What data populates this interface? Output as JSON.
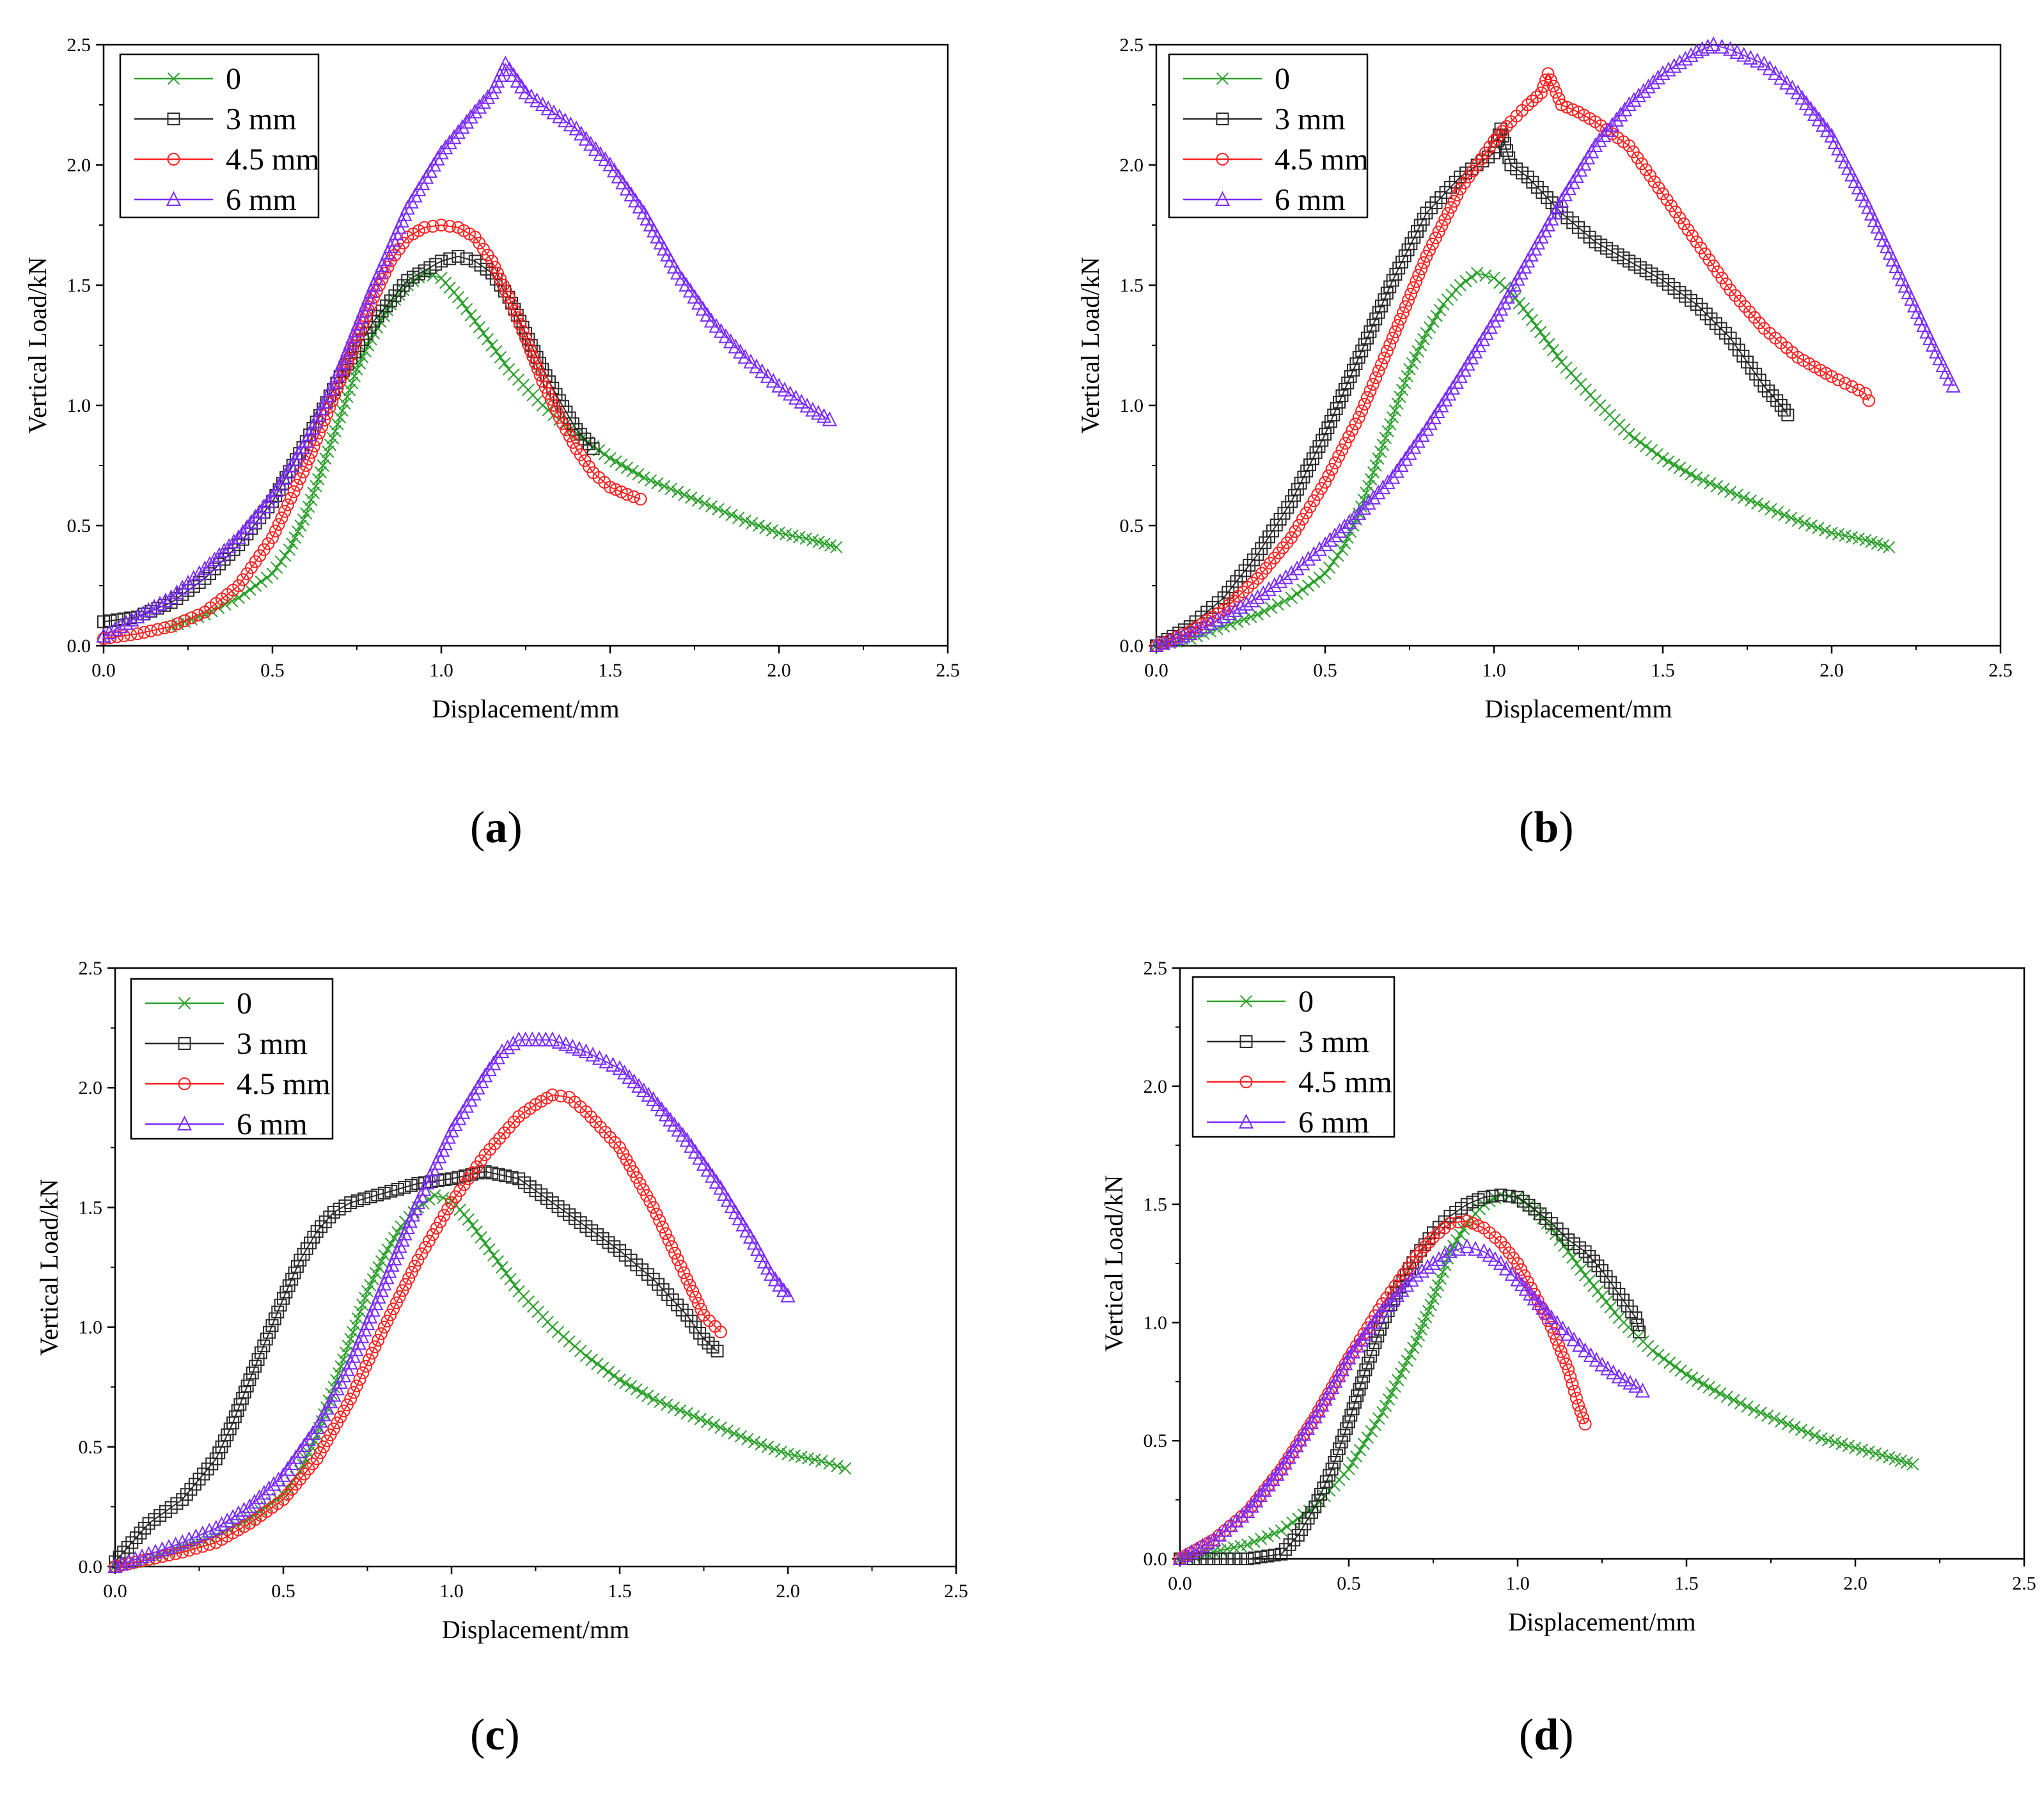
{
  "figure": {
    "series_colors": {
      "0": "#2ca02c",
      "3 mm": "#2a2a2a",
      "4.5 mm": "#ff2020",
      "6 mm": "#7b2cff"
    }
  },
  "chart_data": [
    {
      "id": "a",
      "type": "line",
      "caption_letter": "a",
      "caption_open": "(",
      "caption_close": ")",
      "xlabel": "Displacement/mm",
      "ylabel": "Vertical Load/kN",
      "xlim": [
        0,
        2.5
      ],
      "ylim": [
        0,
        2.5
      ],
      "xticks": [
        "0.0",
        "0.5",
        "1.0",
        "1.5",
        "2.0",
        "2.5"
      ],
      "yticks": [
        "0.0",
        "0.5",
        "1.0",
        "1.5",
        "2.0",
        "2.5"
      ],
      "legend_position": "top-left",
      "series": [
        {
          "name": "0",
          "marker": "x",
          "color": "#2ca02c",
          "x": [
            0.2,
            0.3,
            0.4,
            0.5,
            0.55,
            0.6,
            0.65,
            0.7,
            0.75,
            0.8,
            0.85,
            0.9,
            0.95,
            1.0,
            1.05,
            1.1,
            1.15,
            1.2,
            1.3,
            1.4,
            1.5,
            1.6,
            1.7,
            1.8,
            1.9,
            2.0,
            2.1,
            2.17
          ],
          "y": [
            0.08,
            0.13,
            0.2,
            0.3,
            0.4,
            0.55,
            0.75,
            0.95,
            1.15,
            1.3,
            1.42,
            1.5,
            1.55,
            1.53,
            1.45,
            1.35,
            1.25,
            1.15,
            1.0,
            0.88,
            0.78,
            0.7,
            0.64,
            0.58,
            0.52,
            0.47,
            0.44,
            0.41
          ]
        },
        {
          "name": "3 mm",
          "marker": "square",
          "color": "#2a2a2a",
          "x": [
            0.0,
            0.1,
            0.2,
            0.3,
            0.4,
            0.5,
            0.6,
            0.7,
            0.8,
            0.9,
            1.0,
            1.05,
            1.1,
            1.15,
            1.2,
            1.25,
            1.3,
            1.35,
            1.4,
            1.45
          ],
          "y": [
            0.1,
            0.12,
            0.18,
            0.28,
            0.42,
            0.6,
            0.85,
            1.12,
            1.35,
            1.52,
            1.6,
            1.62,
            1.6,
            1.55,
            1.45,
            1.3,
            1.15,
            1.02,
            0.9,
            0.82
          ]
        },
        {
          "name": "4.5 mm",
          "marker": "circle",
          "color": "#ff2020",
          "x": [
            0.0,
            0.1,
            0.2,
            0.3,
            0.4,
            0.5,
            0.6,
            0.7,
            0.8,
            0.85,
            0.9,
            0.95,
            1.0,
            1.05,
            1.1,
            1.15,
            1.2,
            1.25,
            1.3,
            1.35,
            1.4,
            1.45,
            1.5,
            1.55,
            1.59
          ],
          "y": [
            0.03,
            0.05,
            0.08,
            0.14,
            0.25,
            0.45,
            0.75,
            1.1,
            1.45,
            1.6,
            1.7,
            1.74,
            1.75,
            1.74,
            1.7,
            1.6,
            1.45,
            1.28,
            1.1,
            0.95,
            0.82,
            0.72,
            0.66,
            0.63,
            0.61
          ]
        },
        {
          "name": "6 mm",
          "marker": "triangle",
          "color": "#7b2cff",
          "x": [
            0.0,
            0.1,
            0.2,
            0.3,
            0.4,
            0.5,
            0.6,
            0.7,
            0.8,
            0.9,
            1.0,
            1.1,
            1.15,
            1.19,
            1.25,
            1.3,
            1.4,
            1.5,
            1.6,
            1.7,
            1.8,
            1.9,
            2.0,
            2.1,
            2.15
          ],
          "y": [
            0.04,
            0.12,
            0.2,
            0.32,
            0.45,
            0.62,
            0.85,
            1.15,
            1.5,
            1.82,
            2.05,
            2.22,
            2.3,
            2.42,
            2.3,
            2.25,
            2.15,
            2.0,
            1.8,
            1.55,
            1.35,
            1.2,
            1.08,
            0.98,
            0.94
          ]
        }
      ]
    },
    {
      "id": "b",
      "type": "line",
      "caption_letter": "b",
      "caption_open": "(",
      "caption_close": ")",
      "xlabel": "Displacement/mm",
      "ylabel": "Vertical Load/kN",
      "xlim": [
        0,
        2.5
      ],
      "ylim": [
        0,
        2.5
      ],
      "xticks": [
        "0.0",
        "0.5",
        "1.0",
        "1.5",
        "2.0",
        "2.5"
      ],
      "yticks": [
        "0.0",
        "0.5",
        "1.0",
        "1.5",
        "2.0",
        "2.5"
      ],
      "legend_position": "top-left",
      "series": [
        {
          "name": "0",
          "marker": "x",
          "color": "#2ca02c",
          "x": [
            0.0,
            0.1,
            0.2,
            0.3,
            0.4,
            0.5,
            0.55,
            0.6,
            0.65,
            0.7,
            0.75,
            0.8,
            0.85,
            0.9,
            0.95,
            1.0,
            1.05,
            1.1,
            1.15,
            1.2,
            1.3,
            1.4,
            1.5,
            1.6,
            1.7,
            1.8,
            1.9,
            2.0,
            2.1,
            2.17
          ],
          "y": [
            0.0,
            0.03,
            0.08,
            0.13,
            0.2,
            0.3,
            0.4,
            0.55,
            0.75,
            0.95,
            1.15,
            1.3,
            1.42,
            1.5,
            1.55,
            1.53,
            1.47,
            1.38,
            1.28,
            1.18,
            1.02,
            0.88,
            0.78,
            0.7,
            0.64,
            0.58,
            0.52,
            0.47,
            0.44,
            0.41
          ]
        },
        {
          "name": "3 mm",
          "marker": "square",
          "color": "#2a2a2a",
          "x": [
            0.0,
            0.1,
            0.2,
            0.3,
            0.4,
            0.5,
            0.6,
            0.7,
            0.8,
            0.9,
            0.95,
            1.0,
            1.02,
            1.05,
            1.1,
            1.2,
            1.3,
            1.4,
            1.5,
            1.6,
            1.7,
            1.75,
            1.8,
            1.85,
            1.87
          ],
          "y": [
            0.0,
            0.08,
            0.2,
            0.38,
            0.6,
            0.88,
            1.2,
            1.52,
            1.8,
            1.95,
            2.0,
            2.05,
            2.15,
            2.0,
            1.95,
            1.8,
            1.68,
            1.6,
            1.52,
            1.42,
            1.28,
            1.18,
            1.08,
            1.0,
            0.96
          ]
        },
        {
          "name": "4.5 mm",
          "marker": "circle",
          "color": "#ff2020",
          "x": [
            0.0,
            0.1,
            0.2,
            0.3,
            0.4,
            0.5,
            0.6,
            0.7,
            0.8,
            0.9,
            1.0,
            1.05,
            1.1,
            1.14,
            1.16,
            1.2,
            1.25,
            1.3,
            1.4,
            1.5,
            1.6,
            1.7,
            1.8,
            1.9,
            2.0,
            2.1,
            2.11
          ],
          "y": [
            0.0,
            0.06,
            0.15,
            0.28,
            0.45,
            0.68,
            0.95,
            1.28,
            1.62,
            1.9,
            2.1,
            2.18,
            2.25,
            2.3,
            2.38,
            2.25,
            2.22,
            2.18,
            2.08,
            1.88,
            1.68,
            1.48,
            1.32,
            1.2,
            1.12,
            1.05,
            1.02
          ]
        },
        {
          "name": "6 mm",
          "marker": "triangle",
          "color": "#7b2cff",
          "x": [
            0.0,
            0.1,
            0.2,
            0.3,
            0.4,
            0.5,
            0.6,
            0.7,
            0.8,
            0.9,
            1.0,
            1.1,
            1.2,
            1.3,
            1.4,
            1.5,
            1.6,
            1.65,
            1.7,
            1.8,
            1.9,
            2.0,
            2.1,
            2.2,
            2.3,
            2.36
          ],
          "y": [
            0.0,
            0.05,
            0.12,
            0.2,
            0.3,
            0.42,
            0.55,
            0.7,
            0.9,
            1.12,
            1.35,
            1.6,
            1.85,
            2.08,
            2.25,
            2.38,
            2.47,
            2.5,
            2.48,
            2.42,
            2.3,
            2.12,
            1.85,
            1.55,
            1.25,
            1.08
          ]
        }
      ]
    },
    {
      "id": "c",
      "type": "line",
      "caption_letter": "c",
      "caption_open": "(",
      "caption_close": ")",
      "xlabel": "Displacement/mm",
      "ylabel": "Vertical Load/kN",
      "xlim": [
        0,
        2.5
      ],
      "ylim": [
        0,
        2.5
      ],
      "xticks": [
        "0.0",
        "0.5",
        "1.0",
        "1.5",
        "2.0",
        "2.5"
      ],
      "yticks": [
        "0.0",
        "0.5",
        "1.0",
        "1.5",
        "2.0",
        "2.5"
      ],
      "legend_position": "top-left",
      "series": [
        {
          "name": "0",
          "marker": "x",
          "color": "#2ca02c",
          "x": [
            0.0,
            0.1,
            0.2,
            0.3,
            0.4,
            0.5,
            0.55,
            0.6,
            0.65,
            0.7,
            0.75,
            0.8,
            0.85,
            0.9,
            0.95,
            1.0,
            1.05,
            1.1,
            1.15,
            1.2,
            1.3,
            1.4,
            1.5,
            1.6,
            1.7,
            1.8,
            1.9,
            2.0,
            2.1,
            2.17
          ],
          "y": [
            0.0,
            0.03,
            0.08,
            0.13,
            0.2,
            0.3,
            0.4,
            0.55,
            0.75,
            0.95,
            1.15,
            1.3,
            1.42,
            1.5,
            1.55,
            1.53,
            1.45,
            1.35,
            1.25,
            1.15,
            1.0,
            0.88,
            0.78,
            0.7,
            0.64,
            0.58,
            0.52,
            0.47,
            0.44,
            0.41
          ]
        },
        {
          "name": "3 mm",
          "marker": "square",
          "color": "#2a2a2a",
          "x": [
            0.0,
            0.05,
            0.1,
            0.2,
            0.3,
            0.35,
            0.4,
            0.45,
            0.5,
            0.55,
            0.6,
            0.65,
            0.7,
            0.8,
            0.9,
            1.0,
            1.1,
            1.2,
            1.3,
            1.4,
            1.5,
            1.6,
            1.7,
            1.75,
            1.79
          ],
          "y": [
            0.02,
            0.1,
            0.18,
            0.28,
            0.45,
            0.6,
            0.78,
            0.95,
            1.12,
            1.28,
            1.4,
            1.48,
            1.52,
            1.56,
            1.6,
            1.62,
            1.65,
            1.62,
            1.52,
            1.42,
            1.32,
            1.2,
            1.05,
            0.95,
            0.9
          ]
        },
        {
          "name": "4.5 mm",
          "marker": "circle",
          "color": "#ff2020",
          "x": [
            0.0,
            0.1,
            0.2,
            0.3,
            0.4,
            0.5,
            0.6,
            0.7,
            0.8,
            0.9,
            1.0,
            1.1,
            1.2,
            1.25,
            1.3,
            1.35,
            1.4,
            1.5,
            1.6,
            1.7,
            1.75,
            1.8
          ],
          "y": [
            0.0,
            0.03,
            0.06,
            0.1,
            0.18,
            0.28,
            0.45,
            0.7,
            1.0,
            1.28,
            1.52,
            1.72,
            1.88,
            1.93,
            1.97,
            1.96,
            1.9,
            1.75,
            1.5,
            1.2,
            1.05,
            0.98
          ]
        },
        {
          "name": "6 mm",
          "marker": "triangle",
          "color": "#7b2cff",
          "x": [
            0.0,
            0.1,
            0.2,
            0.3,
            0.4,
            0.5,
            0.6,
            0.7,
            0.8,
            0.9,
            1.0,
            1.1,
            1.15,
            1.2,
            1.3,
            1.4,
            1.5,
            1.6,
            1.7,
            1.8,
            1.9,
            1.95,
            2.0
          ],
          "y": [
            0.0,
            0.05,
            0.1,
            0.16,
            0.25,
            0.38,
            0.58,
            0.85,
            1.18,
            1.52,
            1.82,
            2.05,
            2.15,
            2.2,
            2.2,
            2.15,
            2.08,
            1.95,
            1.78,
            1.58,
            1.35,
            1.22,
            1.13
          ]
        }
      ]
    },
    {
      "id": "d",
      "type": "line",
      "caption_letter": "d",
      "caption_open": "(",
      "caption_close": ")",
      "xlabel": "Displacement/mm",
      "ylabel": "Vertical Load/kN",
      "xlim": [
        0,
        2.5
      ],
      "ylim": [
        0,
        2.5
      ],
      "xticks": [
        "0.0",
        "0.5",
        "1.0",
        "1.5",
        "2.0",
        "2.5"
      ],
      "yticks": [
        "0.0",
        "0.5",
        "1.0",
        "1.5",
        "2.0",
        "2.5"
      ],
      "legend_position": "top-left",
      "series": [
        {
          "name": "0",
          "marker": "x",
          "color": "#2ca02c",
          "x": [
            0.0,
            0.1,
            0.2,
            0.3,
            0.4,
            0.5,
            0.6,
            0.7,
            0.75,
            0.8,
            0.85,
            0.9,
            0.95,
            1.0,
            1.05,
            1.1,
            1.15,
            1.2,
            1.3,
            1.4,
            1.5,
            1.6,
            1.7,
            1.8,
            1.9,
            2.0,
            2.1,
            2.17
          ],
          "y": [
            0.0,
            0.03,
            0.06,
            0.12,
            0.22,
            0.38,
            0.62,
            0.92,
            1.1,
            1.3,
            1.42,
            1.5,
            1.54,
            1.53,
            1.48,
            1.4,
            1.3,
            1.2,
            1.02,
            0.88,
            0.78,
            0.7,
            0.63,
            0.57,
            0.51,
            0.47,
            0.43,
            0.4
          ]
        },
        {
          "name": "3 mm",
          "marker": "square",
          "color": "#2a2a2a",
          "x": [
            0.0,
            0.1,
            0.2,
            0.3,
            0.35,
            0.4,
            0.45,
            0.5,
            0.55,
            0.6,
            0.65,
            0.7,
            0.75,
            0.8,
            0.85,
            0.9,
            0.95,
            1.0,
            1.05,
            1.1,
            1.15,
            1.2,
            1.25,
            1.3,
            1.35,
            1.36
          ],
          "y": [
            0.0,
            0.0,
            0.0,
            0.02,
            0.1,
            0.22,
            0.38,
            0.58,
            0.8,
            1.0,
            1.15,
            1.28,
            1.38,
            1.45,
            1.5,
            1.53,
            1.54,
            1.53,
            1.48,
            1.42,
            1.35,
            1.3,
            1.22,
            1.12,
            1.02,
            0.96
          ]
        },
        {
          "name": "4.5 mm",
          "marker": "circle",
          "color": "#ff2020",
          "x": [
            0.0,
            0.1,
            0.2,
            0.3,
            0.4,
            0.5,
            0.6,
            0.7,
            0.75,
            0.8,
            0.85,
            0.9,
            0.95,
            1.0,
            1.05,
            1.1,
            1.15,
            1.18,
            1.2
          ],
          "y": [
            0.0,
            0.08,
            0.2,
            0.38,
            0.6,
            0.85,
            1.08,
            1.28,
            1.36,
            1.42,
            1.43,
            1.4,
            1.34,
            1.25,
            1.12,
            0.98,
            0.8,
            0.65,
            0.57
          ]
        },
        {
          "name": "6 mm",
          "marker": "triangle",
          "color": "#7b2cff",
          "x": [
            0.0,
            0.1,
            0.2,
            0.3,
            0.4,
            0.5,
            0.6,
            0.7,
            0.8,
            0.85,
            0.9,
            0.95,
            1.0,
            1.05,
            1.1,
            1.15,
            1.2,
            1.25,
            1.3,
            1.35,
            1.37
          ],
          "y": [
            0.0,
            0.08,
            0.2,
            0.38,
            0.6,
            0.85,
            1.05,
            1.2,
            1.3,
            1.32,
            1.3,
            1.25,
            1.18,
            1.1,
            1.02,
            0.95,
            0.88,
            0.82,
            0.77,
            0.73,
            0.71
          ]
        }
      ]
    }
  ]
}
